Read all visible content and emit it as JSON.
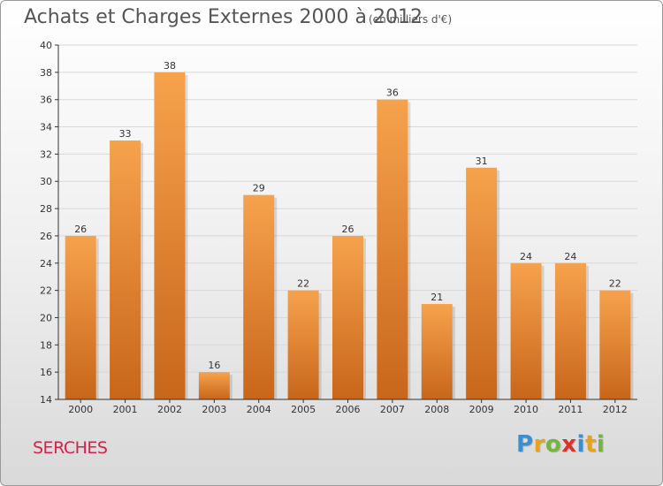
{
  "title": "Achats et Charges Externes 2000 à 2012",
  "subtitle": "(en milliers d'€)",
  "commune": "SERCHES",
  "logo": {
    "letters": [
      "P",
      "r",
      "o",
      "x",
      "i",
      "t",
      "i"
    ],
    "colors": [
      "#3a8fd0",
      "#e8a21c",
      "#74b53c",
      "#d9342c",
      "#3a8fd0",
      "#e8a21c",
      "#74b53c"
    ]
  },
  "colors": {
    "bar_top": "#f6a24d",
    "bar_bottom": "#c8661a",
    "grid": "#d8d8d8",
    "axis": "#333333",
    "title": "#555555",
    "commune": "#d2244a"
  },
  "chart_data": {
    "type": "bar",
    "categories": [
      "2000",
      "2001",
      "2002",
      "2003",
      "2004",
      "2005",
      "2006",
      "2007",
      "2008",
      "2009",
      "2010",
      "2011",
      "2012"
    ],
    "values": [
      26,
      33,
      38,
      16,
      29,
      22,
      26,
      36,
      21,
      31,
      24,
      24,
      22
    ],
    "ylim": [
      14,
      40
    ],
    "yticks": [
      "14",
      "16",
      "18",
      "20",
      "22",
      "24",
      "26",
      "28",
      "30",
      "32",
      "34",
      "36",
      "38",
      "40"
    ],
    "grid": true,
    "xlabel": "",
    "ylabel": ""
  }
}
